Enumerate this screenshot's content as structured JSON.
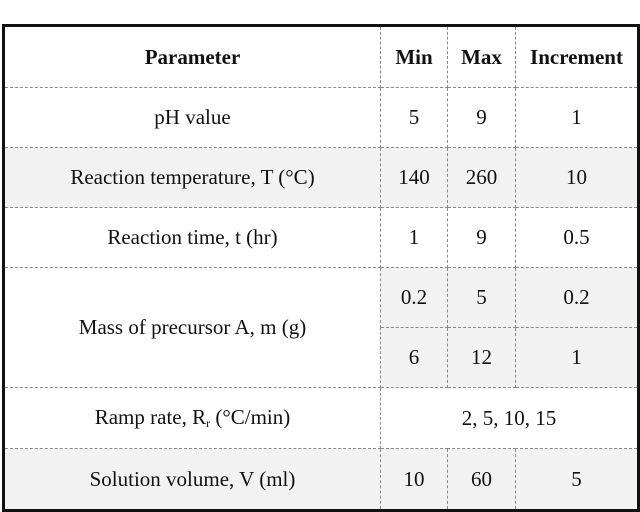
{
  "table": {
    "headers": [
      "Parameter",
      "Min",
      "Max",
      "Increment"
    ],
    "rows": [
      {
        "parameter": "pH value",
        "min": "5",
        "max": "9",
        "increment": "1"
      },
      {
        "parameter": "Reaction temperature, T (°C)",
        "min": "140",
        "max": "260",
        "increment": "10"
      },
      {
        "parameter": "Reaction time, t (hr)",
        "min": "1",
        "max": "9",
        "increment": "0.5"
      },
      {
        "parameter": "Mass of precursor A, m (g)",
        "ranges": [
          {
            "min": "0.2",
            "max": "5",
            "increment": "0.2"
          },
          {
            "min": "6",
            "max": "12",
            "increment": "1"
          }
        ]
      },
      {
        "parameter_pre": "Ramp rate, R",
        "parameter_sub": "r",
        "parameter_post": " (°C/min)",
        "values": "2, 5, 10, 15"
      },
      {
        "parameter": "Solution volume, V (ml)",
        "min": "10",
        "max": "60",
        "increment": "5"
      }
    ]
  }
}
